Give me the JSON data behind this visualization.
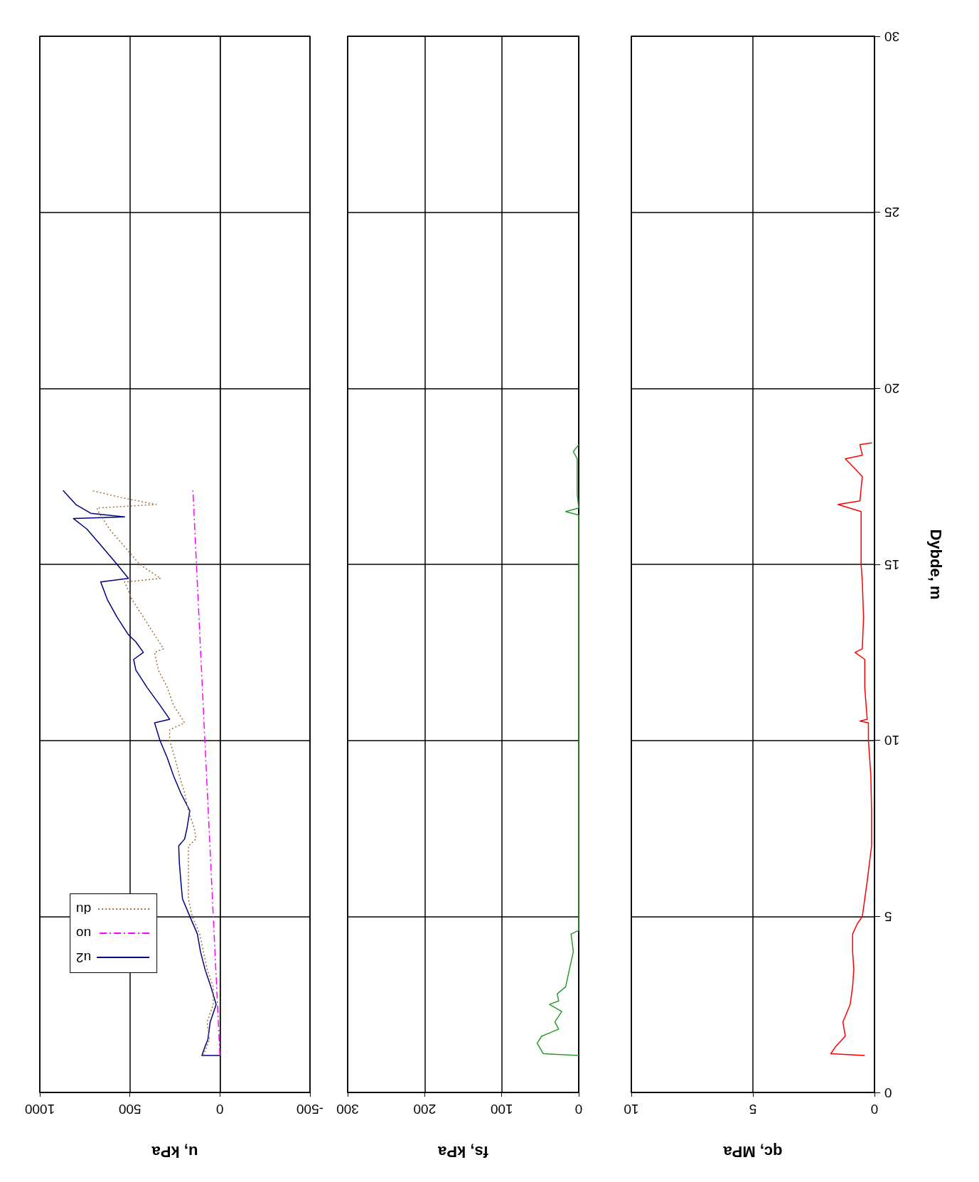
{
  "chart_data": [
    {
      "type": "line",
      "xlabel": "u, kPa",
      "xlim": [
        1000,
        -500
      ],
      "xticks": [
        1000,
        500,
        0,
        -500
      ],
      "ylim": [
        0,
        30
      ],
      "yticks": [
        0,
        5,
        10,
        15,
        20,
        25,
        30
      ],
      "grid": true,
      "tick_labels": "x",
      "legend": "bottom left",
      "marker": "none",
      "series": [
        {
          "name": "u2",
          "color": "#000080",
          "line_style": "solid",
          "x": [
            0,
            100,
            83,
            67,
            54,
            21,
            50,
            83,
            108,
            125,
            167,
            208,
            217,
            225,
            229,
            196,
            183,
            167,
            217,
            258,
            292,
            333,
            363,
            279,
            333,
            404,
            467,
            479,
            425,
            467,
            508,
            571,
            625,
            662,
            508,
            571,
            654,
            738,
            813,
            529,
            717,
            800,
            871
          ],
          "values": [
            1.05,
            1.05,
            1.3,
            1.5,
            2.0,
            2.5,
            3.0,
            3.5,
            4.0,
            4.5,
            5.0,
            5.5,
            6.0,
            6.5,
            7.0,
            7.2,
            7.5,
            8.0,
            8.5,
            9.0,
            9.5,
            10.0,
            10.5,
            10.6,
            11.0,
            11.5,
            12.0,
            12.3,
            12.5,
            12.8,
            13.0,
            13.5,
            14.0,
            14.5,
            14.6,
            15.0,
            15.5,
            16.0,
            16.3,
            16.35,
            16.45,
            16.7,
            17.1
          ]
        },
        {
          "name": "uo",
          "color": "#ff00ff",
          "line_style": "dashed",
          "x": [
            0,
            150
          ],
          "values": [
            1.05,
            17.1
          ]
        },
        {
          "name": "du",
          "color": "#a0703c",
          "line_style": "dotted",
          "x": [
            92,
            58,
            71,
            37,
            37,
            71,
            92,
            112,
            154,
            175,
            175,
            175,
            133,
            142,
            175,
            196,
            225,
            250,
            279,
            279,
            196,
            258,
            292,
            342,
            363,
            313,
            363,
            425,
            488,
            529,
            329,
            446,
            529,
            613,
            675,
            683,
            354,
            550,
            717
          ],
          "values": [
            1.05,
            1.5,
            2.0,
            2.5,
            3.0,
            3.5,
            4.0,
            4.5,
            5.0,
            5.5,
            6.0,
            7.0,
            7.2,
            7.5,
            8.0,
            8.5,
            9.0,
            9.5,
            10.0,
            10.3,
            10.5,
            11.0,
            11.5,
            12.0,
            12.5,
            12.6,
            13.0,
            13.5,
            14.0,
            14.5,
            14.6,
            15.0,
            15.5,
            16.0,
            16.5,
            16.6,
            16.7,
            16.9,
            17.1
          ]
        }
      ]
    },
    {
      "type": "line",
      "xlabel": "fs, kPa",
      "xlim": [
        300,
        0
      ],
      "xticks": [
        300,
        200,
        100,
        0
      ],
      "ylim": [
        0,
        30
      ],
      "yticks": [
        0,
        5,
        10,
        15,
        20,
        25,
        30
      ],
      "grid": true,
      "tick_labels": "x",
      "marker": "none",
      "series": [
        {
          "color": "#2e9a2e",
          "line_style": "solid",
          "x": [
            0,
            46,
            54,
            48,
            26,
            31,
            22,
            38,
            26,
            28,
            17,
            12,
            7,
            10,
            0,
            0,
            17,
            0,
            2,
            2,
            7,
            0
          ],
          "values": [
            1.05,
            1.1,
            1.4,
            1.6,
            1.8,
            2.0,
            2.3,
            2.5,
            2.6,
            2.8,
            3.0,
            3.5,
            4.0,
            4.5,
            4.6,
            16.4,
            16.5,
            16.6,
            17.0,
            18.0,
            18.2,
            18.4
          ]
        }
      ]
    },
    {
      "type": "line",
      "xlabel": "qc, MPa",
      "ylabel": "Dybde, m",
      "xlim": [
        10,
        0
      ],
      "xticks": [
        10,
        5,
        0
      ],
      "ylim": [
        0,
        30
      ],
      "yticks": [
        0,
        5,
        10,
        15,
        20,
        25,
        30
      ],
      "grid": true,
      "marker": "none",
      "series": [
        {
          "color": "#ff0000",
          "line_style": "solid",
          "x": [
            0.4,
            1.8,
            1.6,
            1.2,
            1.3,
            1.0,
            0.9,
            0.85,
            0.9,
            0.9,
            0.7,
            0.5,
            0.4,
            0.3,
            0.12,
            0.12,
            0.15,
            0.25,
            0.25,
            0.6,
            0.3,
            0.4,
            0.4,
            0.8,
            0.5,
            0.45,
            0.5,
            0.55,
            0.55,
            0.55,
            1.5,
            0.6,
            0.5,
            1.2,
            0.5,
            0.6,
            0.1
          ],
          "values": [
            1.05,
            1.1,
            1.3,
            1.6,
            2.0,
            2.5,
            3.0,
            3.5,
            4.0,
            4.5,
            4.8,
            5.0,
            5.5,
            6.0,
            7.0,
            8.0,
            9.0,
            10.0,
            10.5,
            10.55,
            10.6,
            11.5,
            12.3,
            12.5,
            12.6,
            13.5,
            14.5,
            15.0,
            16.0,
            16.5,
            16.7,
            16.8,
            17.5,
            18.0,
            18.1,
            18.4,
            18.45
          ]
        }
      ]
    }
  ]
}
